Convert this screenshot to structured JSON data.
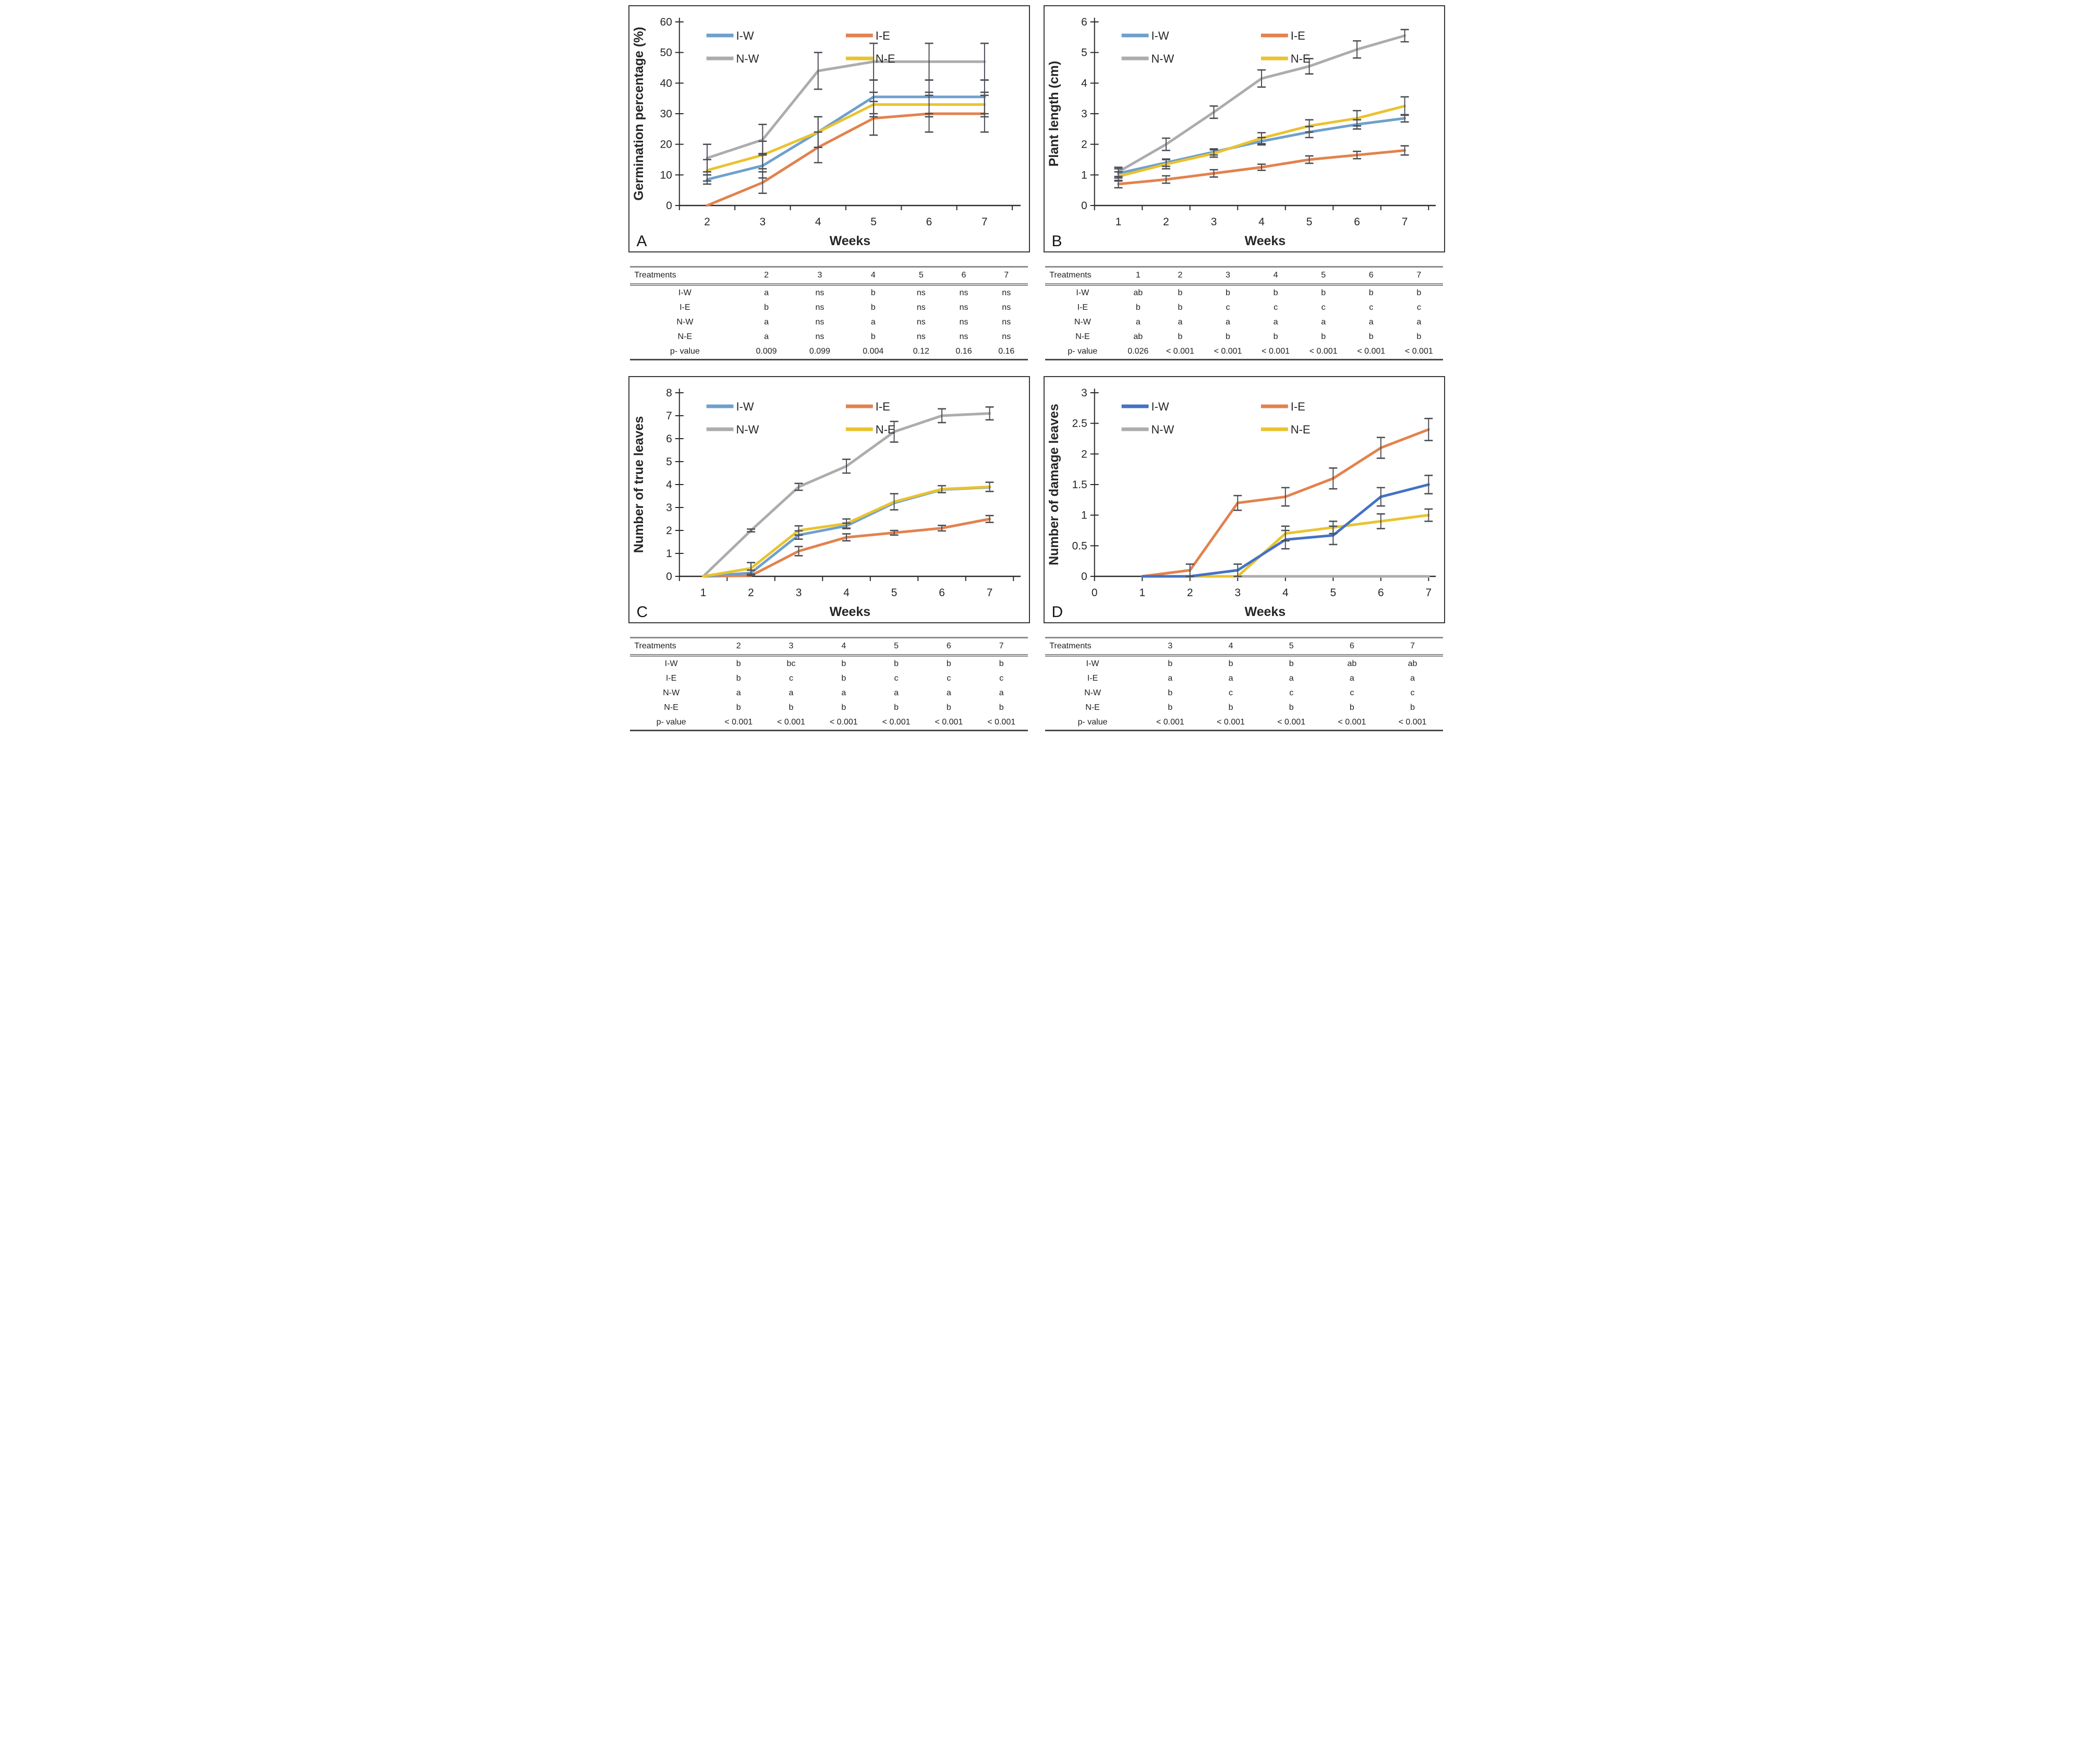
{
  "figure_title": "",
  "series_names": [
    "I-W",
    "I-E",
    "N-W",
    "N-E"
  ],
  "panels": [
    {
      "label": "A",
      "chart_data": {
        "type": "line",
        "title": "",
        "xlabel": "Weeks",
        "ylabel": "Germination percentage (%)",
        "x": [
          2,
          3,
          4,
          5,
          6,
          7
        ],
        "xlim": [
          1.5,
          7.65
        ],
        "ylim": [
          0,
          60
        ],
        "yticks": [
          0,
          10,
          20,
          30,
          40,
          50,
          60
        ],
        "xtick_labels": [
          2,
          3,
          4,
          5,
          6,
          7
        ],
        "xtick_marks": [
          1.5,
          2.5,
          3.5,
          4.5,
          5.5,
          6.5,
          7.5
        ],
        "grid": false,
        "legend_position": "top-left",
        "axis_color": "#2b2b2b",
        "error_bar_color": "#4a4e55",
        "draw_order": [
          2,
          1,
          0,
          3
        ],
        "series": [
          {
            "name": "I-W",
            "color": "#6FA0CD",
            "values": [
              8.5,
              13,
              24,
              35.5,
              35.5,
              35.5
            ],
            "err": [
              1.5,
              4,
              5,
              5.5,
              5.5,
              5.5
            ]
          },
          {
            "name": "I-E",
            "color": "#E2824D",
            "values": [
              0,
              7.5,
              19,
              28.5,
              30,
              30
            ],
            "err": [
              0,
              3.5,
              5,
              5.5,
              6,
              6
            ]
          },
          {
            "name": "N-W",
            "color": "#ACACAC",
            "values": [
              15.5,
              21.5,
              44,
              47,
              47,
              47
            ],
            "err": [
              4.5,
              5,
              6,
              6,
              6,
              6
            ]
          },
          {
            "name": "N-E",
            "color": "#E9C32F",
            "values": [
              11.5,
              16.5,
              24,
              33,
              33,
              33
            ],
            "err": [
              3.5,
              4.5,
              5,
              4,
              4,
              4
            ]
          }
        ]
      },
      "table": {
        "header": [
          "Treatments",
          "2",
          "3",
          "4",
          "5",
          "6",
          "7"
        ],
        "rows": [
          [
            "I-W",
            "a",
            "ns",
            "b",
            "ns",
            "ns",
            "ns"
          ],
          [
            "I-E",
            "b",
            "ns",
            "b",
            "ns",
            "ns",
            "ns"
          ],
          [
            "N-W",
            "a",
            "ns",
            "a",
            "ns",
            "ns",
            "ns"
          ],
          [
            "N-E",
            "a",
            "ns",
            "b",
            "ns",
            "ns",
            "ns"
          ],
          [
            "p- value",
            "0.009",
            "0.099",
            "0.004",
            "0.12",
            "0.16",
            "0.16"
          ]
        ]
      }
    },
    {
      "label": "B",
      "chart_data": {
        "type": "line",
        "title": "",
        "xlabel": "Weeks",
        "ylabel": "Plant length  (cm)",
        "x": [
          1,
          2,
          3,
          4,
          5,
          6,
          7
        ],
        "xlim": [
          0.5,
          7.65
        ],
        "ylim": [
          0,
          6
        ],
        "yticks": [
          0,
          1,
          2,
          3,
          4,
          5,
          6
        ],
        "xtick_labels": [
          1,
          2,
          3,
          4,
          5,
          6,
          7
        ],
        "xtick_marks": [
          0.5,
          1.5,
          2.5,
          3.5,
          4.5,
          5.5,
          6.5,
          7.5
        ],
        "grid": false,
        "legend_position": "top-left",
        "axis_color": "#2b2b2b",
        "error_bar_color": "#4a4e55",
        "draw_order": [
          2,
          1,
          0,
          3
        ],
        "series": [
          {
            "name": "I-W",
            "color": "#6FA0CD",
            "values": [
              1.05,
              1.4,
              1.75,
              2.1,
              2.4,
              2.65,
              2.85
            ],
            "err": [
              0.15,
              0.12,
              0.1,
              0.12,
              0.18,
              0.15,
              0.12
            ]
          },
          {
            "name": "I-E",
            "color": "#E2824D",
            "values": [
              0.7,
              0.85,
              1.05,
              1.25,
              1.5,
              1.65,
              1.8
            ],
            "err": [
              0.12,
              0.12,
              0.12,
              0.1,
              0.12,
              0.12,
              0.15
            ]
          },
          {
            "name": "N-W",
            "color": "#ACACAC",
            "values": [
              1.1,
              2.0,
              3.05,
              4.15,
              4.55,
              5.1,
              5.55
            ],
            "err": [
              0.15,
              0.2,
              0.2,
              0.28,
              0.25,
              0.28,
              0.2
            ]
          },
          {
            "name": "N-E",
            "color": "#E9C32F",
            "values": [
              0.95,
              1.35,
              1.7,
              2.2,
              2.6,
              2.85,
              3.25
            ],
            "err": [
              0.15,
              0.15,
              0.12,
              0.18,
              0.2,
              0.25,
              0.3
            ]
          }
        ]
      },
      "table": {
        "header": [
          "Treatments",
          "1",
          "2",
          "3",
          "4",
          "5",
          "6",
          "7"
        ],
        "rows": [
          [
            "I-W",
            "ab",
            "b",
            "b",
            "b",
            "b",
            "b",
            "b"
          ],
          [
            "I-E",
            "b",
            "b",
            "c",
            "c",
            "c",
            "c",
            "c"
          ],
          [
            "N-W",
            "a",
            "a",
            "a",
            "a",
            "a",
            "a",
            "a"
          ],
          [
            "N-E",
            "ab",
            "b",
            "b",
            "b",
            "b",
            "b",
            "b"
          ],
          [
            "p- value",
            "0.026",
            "< 0.001",
            "< 0.001",
            "< 0.001",
            "< 0.001",
            "< 0.001",
            "< 0.001"
          ]
        ]
      }
    },
    {
      "label": "C",
      "chart_data": {
        "type": "line",
        "title": "",
        "xlabel": "Weeks",
        "ylabel": "Number of true leaves",
        "x": [
          1,
          2,
          3,
          4,
          5,
          6,
          7
        ],
        "xlim": [
          0.5,
          7.65
        ],
        "ylim": [
          0,
          8
        ],
        "yticks": [
          0,
          1,
          2,
          3,
          4,
          5,
          6,
          7,
          8
        ],
        "xtick_labels": [
          1,
          2,
          3,
          4,
          5,
          6,
          7
        ],
        "xtick_marks": [
          0.5,
          1.5,
          2.5,
          3.5,
          4.5,
          5.5,
          6.5,
          7.5
        ],
        "grid": false,
        "legend_position": "top-left",
        "axis_color": "#2b2b2b",
        "error_bar_color": "#4a4e55",
        "draw_order": [
          2,
          1,
          0,
          3
        ],
        "series": [
          {
            "name": "I-W",
            "color": "#6FA0CD",
            "values": [
              0,
              0.15,
              1.8,
              2.2,
              3.2,
              3.78,
              3.88
            ],
            "err": [
              0,
              0.12,
              0.18,
              0.12,
              0,
              0,
              0
            ]
          },
          {
            "name": "I-E",
            "color": "#E2824D",
            "values": [
              0,
              0.03,
              1.1,
              1.7,
              1.9,
              2.1,
              2.5
            ],
            "err": [
              0,
              0,
              0.2,
              0.15,
              0.1,
              0.12,
              0.15
            ]
          },
          {
            "name": "N-W",
            "color": "#ACACAC",
            "values": [
              0,
              2.0,
              3.9,
              4.8,
              6.3,
              7.0,
              7.1
            ],
            "err": [
              0,
              0.06,
              0.15,
              0.3,
              0.45,
              0.3,
              0.28
            ]
          },
          {
            "name": "N-E",
            "color": "#E9C32F",
            "values": [
              0,
              0.35,
              2.0,
              2.3,
              3.25,
              3.8,
              3.9
            ],
            "err": [
              0,
              0.25,
              0.2,
              0.2,
              0.35,
              0.15,
              0.2
            ]
          }
        ]
      },
      "table": {
        "header": [
          "Treatments",
          "2",
          "3",
          "4",
          "5",
          "6",
          "7"
        ],
        "rows": [
          [
            "I-W",
            "b",
            "bc",
            "b",
            "b",
            "b",
            "b"
          ],
          [
            "I-E",
            "b",
            "c",
            "b",
            "c",
            "c",
            "c"
          ],
          [
            "N-W",
            "a",
            "a",
            "a",
            "a",
            "a",
            "a"
          ],
          [
            "N-E",
            "b",
            "b",
            "b",
            "b",
            "b",
            "b"
          ],
          [
            "p- value",
            "< 0.001",
            "< 0.001",
            "< 0.001",
            "< 0.001",
            "< 0.001",
            "< 0.001"
          ]
        ]
      }
    },
    {
      "label": "D",
      "chart_data": {
        "type": "line",
        "title": "",
        "xlabel": "Weeks",
        "ylabel": "Number of damage leaves",
        "x": [
          1,
          2,
          3,
          4,
          5,
          6,
          7
        ],
        "xlim": [
          0,
          7.15
        ],
        "ylim": [
          0,
          3
        ],
        "yticks": [
          0,
          0.5,
          1,
          1.5,
          2,
          2.5,
          3
        ],
        "xtick_labels": [
          0,
          1,
          2,
          3,
          4,
          5,
          6,
          7
        ],
        "xtick_marks": [
          0,
          1,
          2,
          3,
          4,
          5,
          6,
          7
        ],
        "grid": false,
        "legend_position": "top-left",
        "axis_color": "#2b2b2b",
        "error_bar_color": "#4a4e55",
        "draw_order": [
          2,
          3,
          1,
          0
        ],
        "series": [
          {
            "name": "I-W",
            "color": "#4472C4",
            "values": [
              0,
              0,
              0.1,
              0.6,
              0.67,
              1.3,
              1.5
            ],
            "err": [
              0,
              0,
              0.1,
              0.15,
              0.15,
              0.15,
              0.15
            ]
          },
          {
            "name": "I-E",
            "color": "#E2824D",
            "values": [
              0,
              0.1,
              1.2,
              1.3,
              1.6,
              2.1,
              2.4
            ],
            "err": [
              0,
              0.1,
              0.12,
              0.15,
              0.17,
              0.17,
              0.18
            ]
          },
          {
            "name": "N-W",
            "color": "#ACACAC",
            "values": [
              0,
              0,
              0,
              0,
              0,
              0,
              0
            ],
            "err": [
              0,
              0,
              0,
              0,
              0,
              0,
              0
            ]
          },
          {
            "name": "N-E",
            "color": "#E9C32F",
            "values": [
              0,
              0,
              0,
              0.7,
              0.8,
              0.9,
              1.0
            ],
            "err": [
              0,
              0,
              0,
              0.12,
              0.1,
              0.12,
              0.1
            ]
          }
        ]
      },
      "table": {
        "header": [
          "Treatments",
          "3",
          "4",
          "5",
          "6",
          "7"
        ],
        "rows": [
          [
            "I-W",
            "b",
            "b",
            "b",
            "ab",
            "ab"
          ],
          [
            "I-E",
            "a",
            "a",
            "a",
            "a",
            "a"
          ],
          [
            "N-W",
            "b",
            "c",
            "c",
            "c",
            "c"
          ],
          [
            "N-E",
            "b",
            "b",
            "b",
            "b",
            "b"
          ],
          [
            "p- value",
            "< 0.001",
            "< 0.001",
            "< 0.001",
            "< 0.001",
            "< 0.001"
          ]
        ]
      }
    }
  ]
}
